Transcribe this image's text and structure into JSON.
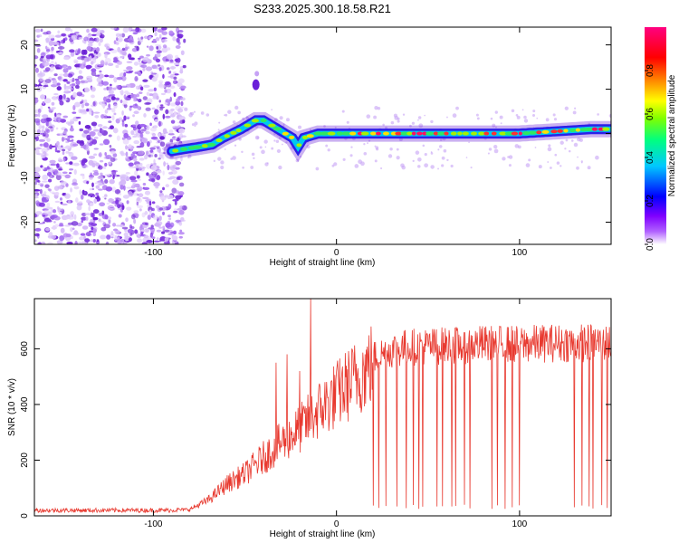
{
  "figure_title": "S233.2025.300.18.58.R21",
  "chart_data": [
    {
      "type": "heatmap",
      "name": "spectrogram",
      "xlabel": "Height of straight line (km)",
      "ylabel": "Frequency (Hz)",
      "xlim": [
        -165,
        150
      ],
      "ylim": [
        -25,
        24
      ],
      "xticks": [
        -100,
        0,
        100
      ],
      "xtick_labels": [
        "-100",
        "0",
        "100"
      ],
      "yticks": [
        -20,
        -10,
        0,
        10,
        20
      ],
      "ytick_labels": [
        "-20",
        "-10",
        "0",
        "10",
        "20"
      ],
      "noise_region_x": [
        -165,
        -83
      ],
      "signal_ridge": {
        "x": [
          -90,
          -83,
          -75,
          -68,
          -62,
          -57,
          -52,
          -48,
          -44,
          -40,
          -36,
          -32,
          -28,
          -24,
          -21,
          -18,
          -14,
          -10,
          0,
          20,
          40,
          60,
          80,
          100,
          120,
          140,
          150
        ],
        "freq": [
          -4,
          -3.5,
          -3,
          -2.5,
          -1,
          0,
          1,
          2,
          3,
          3,
          2,
          1,
          0,
          -1,
          -3,
          -1,
          -0.5,
          0,
          0,
          0,
          0,
          0,
          0,
          0,
          0.5,
          1,
          1
        ]
      },
      "outlier_feature": {
        "x": -44,
        "freq": 11
      },
      "colorbar": {
        "label": "Normalized spectral amplitude",
        "range": [
          0,
          1
        ],
        "ticks": [
          0.0,
          0.2,
          0.4,
          0.6,
          0.8
        ],
        "tick_labels": [
          "0.0",
          "0.2",
          "0.4",
          "0.6",
          "0.8"
        ],
        "colormap": [
          "#ffffff",
          "#8000ff",
          "#0000ff",
          "#00c8ff",
          "#00ff80",
          "#80ff00",
          "#ffff00",
          "#ff8000",
          "#ff0000",
          "#ff0080"
        ]
      }
    },
    {
      "type": "line",
      "name": "snr",
      "xlabel": "Height of straight line (km)",
      "ylabel": "SNR (10 * v/v)",
      "xlim": [
        -165,
        150
      ],
      "ylim": [
        0,
        780
      ],
      "xticks": [
        -100,
        0,
        100
      ],
      "xtick_labels": [
        "-100",
        "0",
        "100"
      ],
      "yticks": [
        0,
        200,
        400,
        600
      ],
      "ytick_labels": [
        "0",
        "200",
        "400",
        "600"
      ],
      "color": "#e8392f",
      "envelope": {
        "x": [
          -165,
          -90,
          -80,
          -70,
          -60,
          -50,
          -40,
          -30,
          -20,
          -10,
          0,
          10,
          20,
          30,
          40,
          60,
          80,
          100,
          120,
          140,
          150
        ],
        "snr": [
          20,
          20,
          25,
          60,
          120,
          160,
          220,
          280,
          330,
          400,
          460,
          520,
          580,
          610,
          620,
          625,
          630,
          630,
          635,
          635,
          635
        ]
      },
      "notable_spikes": [
        {
          "x": -14,
          "snr": 780
        },
        {
          "x": -20,
          "snr": 520
        },
        {
          "x": -27,
          "snr": 580
        },
        {
          "x": -33,
          "snr": 550
        }
      ],
      "dropout_x": [
        20,
        23,
        27,
        33,
        38,
        42,
        45,
        47,
        55,
        58,
        63,
        65,
        70,
        73,
        85,
        88,
        92,
        96,
        100,
        130,
        134,
        138,
        140,
        145,
        148
      ]
    }
  ]
}
